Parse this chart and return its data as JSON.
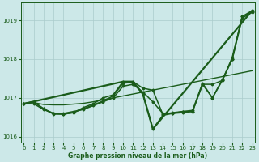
{
  "bg_color": "#cce8e8",
  "grid_color": "#aacccc",
  "line_color": "#1a5c1a",
  "ylim": [
    1015.85,
    1019.45
  ],
  "xlim": [
    -0.3,
    23.3
  ],
  "yticks": [
    1016,
    1017,
    1018,
    1019
  ],
  "ytick_labels": [
    "1016",
    "1017",
    "1018",
    "1019"
  ],
  "xticks": [
    0,
    1,
    2,
    3,
    4,
    5,
    6,
    7,
    8,
    9,
    10,
    11,
    12,
    13,
    14,
    15,
    16,
    17,
    18,
    19,
    20,
    21,
    22,
    23
  ],
  "xlabel": "Graphe pression niveau de la mer (hPa)",
  "series": [
    {
      "x": [
        0,
        1,
        2,
        3,
        4,
        5,
        6,
        7,
        8,
        9,
        10,
        11,
        12,
        13,
        14,
        15,
        16,
        17,
        18,
        19,
        20,
        21,
        22,
        23
      ],
      "y": [
        1016.85,
        1016.88,
        1016.83,
        1016.82,
        1016.82,
        1016.84,
        1016.86,
        1016.9,
        1016.95,
        1017.0,
        1017.05,
        1017.1,
        1017.15,
        1017.2,
        1017.25,
        1017.3,
        1017.35,
        1017.4,
        1017.45,
        1017.5,
        1017.55,
        1017.6,
        1017.65,
        1017.7
      ],
      "style": "line_only",
      "linewidth": 1.0
    },
    {
      "x": [
        0,
        1,
        2,
        3,
        4,
        5,
        6,
        7,
        8,
        9,
        10,
        11,
        12,
        13,
        14,
        15,
        16,
        17,
        18,
        19,
        20,
        21,
        22,
        23
      ],
      "y": [
        1016.85,
        1016.85,
        1016.7,
        1016.6,
        1016.6,
        1016.65,
        1016.7,
        1016.8,
        1016.9,
        1017.0,
        1017.3,
        1017.35,
        1017.15,
        1016.9,
        1016.6,
        1016.6,
        1016.65,
        1016.65,
        1017.35,
        1017.35,
        1017.45,
        1018.0,
        1019.1,
        1019.25
      ],
      "style": "line_marker",
      "linewidth": 1.1
    },
    {
      "x": [
        0,
        1,
        2,
        3,
        4,
        5,
        6,
        7,
        8,
        9,
        10,
        11,
        12,
        13,
        14,
        15,
        16,
        17,
        18,
        19,
        20,
        21,
        22,
        23
      ],
      "y": [
        1016.85,
        1016.9,
        1016.72,
        1016.6,
        1016.58,
        1016.62,
        1016.72,
        1016.82,
        1016.92,
        1017.05,
        1017.38,
        1017.4,
        1017.1,
        1016.2,
        1016.55,
        1016.6,
        1016.62,
        1016.65,
        1017.35,
        1017.0,
        1017.45,
        1018.05,
        1019.1,
        1019.2
      ],
      "style": "line_marker",
      "linewidth": 1.1
    },
    {
      "x": [
        0,
        1,
        2,
        3,
        4,
        5,
        6,
        7,
        8,
        9,
        10,
        11,
        12,
        13,
        14,
        15,
        16,
        17,
        18,
        19,
        20,
        21,
        22,
        23
      ],
      "y": [
        1016.85,
        1016.9,
        1016.72,
        1016.58,
        1016.58,
        1016.62,
        1016.75,
        1016.85,
        1017.0,
        1017.08,
        1017.42,
        1017.42,
        1017.25,
        1017.2,
        1016.58,
        1016.62,
        1016.65,
        1016.68,
        1017.38,
        1017.0,
        1017.48,
        1018.0,
        1019.05,
        1019.22
      ],
      "style": "line_marker",
      "linewidth": 1.1
    },
    {
      "x": [
        0,
        10,
        11,
        12,
        13,
        23
      ],
      "y": [
        1016.85,
        1017.42,
        1017.42,
        1017.1,
        1016.2,
        1019.25
      ],
      "style": "line_only",
      "linewidth": 1.6
    }
  ]
}
